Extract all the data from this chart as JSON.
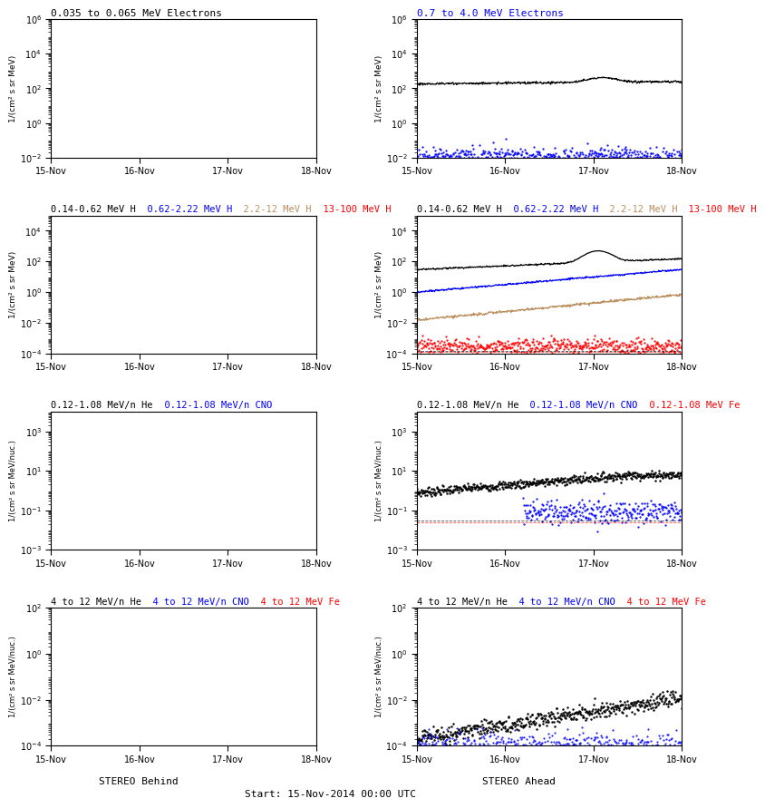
{
  "background_color": "#ffffff",
  "n_points": 500,
  "seed": 42,
  "xtick_labels": [
    "15-Nov",
    "16-Nov",
    "17-Nov",
    "18-Nov"
  ],
  "xlabel_left": "STEREO Behind",
  "xlabel_center": "Start: 15-Nov-2014 00:00 UTC",
  "xlabel_right": "STEREO Ahead",
  "row0_left_title": [
    {
      "t": "0.035 to 0.065 MeV Electrons",
      "c": "black"
    }
  ],
  "row0_right_title": [
    {
      "t": "0.7 to 4.0 MeV Electrons",
      "c": "blue"
    }
  ],
  "row1_left_title": [
    {
      "t": "0.14-0.62 MeV H",
      "c": "black"
    },
    {
      "t": "  0.62-2.22 MeV H",
      "c": "blue"
    },
    {
      "t": "  2.2-12 MeV H",
      "c": "#bc8f5f"
    },
    {
      "t": "  13-100 MeV H",
      "c": "red"
    }
  ],
  "row1_right_title": [
    {
      "t": "0.14-0.62 MeV H",
      "c": "black"
    },
    {
      "t": "  0.62-2.22 MeV H",
      "c": "blue"
    },
    {
      "t": "  2.2-12 MeV H",
      "c": "#bc8f5f"
    },
    {
      "t": "  13-100 MeV H",
      "c": "red"
    }
  ],
  "row2_left_title": [
    {
      "t": "0.12-1.08 MeV/n He",
      "c": "black"
    },
    {
      "t": "  0.12-1.08 MeV/n CNO",
      "c": "blue"
    }
  ],
  "row2_right_title": [
    {
      "t": "0.12-1.08 MeV/n He",
      "c": "black"
    },
    {
      "t": "  0.12-1.08 MeV/n CNO",
      "c": "blue"
    },
    {
      "t": "  0.12-1.08 MeV Fe",
      "c": "red"
    }
  ],
  "row3_left_title": [
    {
      "t": "4 to 12 MeV/n He",
      "c": "black"
    },
    {
      "t": "  4 to 12 MeV/n CNO",
      "c": "blue"
    },
    {
      "t": "  4 to 12 MeV Fe",
      "c": "red"
    }
  ],
  "row3_right_title": [
    {
      "t": "4 to 12 MeV/n He",
      "c": "black"
    },
    {
      "t": "  4 to 12 MeV/n CNO",
      "c": "blue"
    },
    {
      "t": "  4 to 12 MeV Fe",
      "c": "red"
    }
  ],
  "row0_ylim": [
    0.01,
    1000000.0
  ],
  "row0_yticks": [
    0.01,
    1.0,
    100.0,
    10000.0,
    1000000.0
  ],
  "row1_ylim": [
    0.0001,
    100000.0
  ],
  "row1_yticks": [
    0.0001,
    0.01,
    1.0,
    100.0,
    10000.0
  ],
  "row2_ylim": [
    0.001,
    10000.0
  ],
  "row2_yticks": [
    0.001,
    0.1,
    10.0,
    1000.0
  ],
  "row3_ylim": [
    0.0001,
    100.0
  ],
  "row3_yticks": [
    0.0001,
    0.01,
    1.0,
    100.0
  ],
  "ylabel_MeV": "1/(cm² s sr MeV)",
  "ylabel_nuc": "1/(cm² s sr MeV/nuc.)"
}
